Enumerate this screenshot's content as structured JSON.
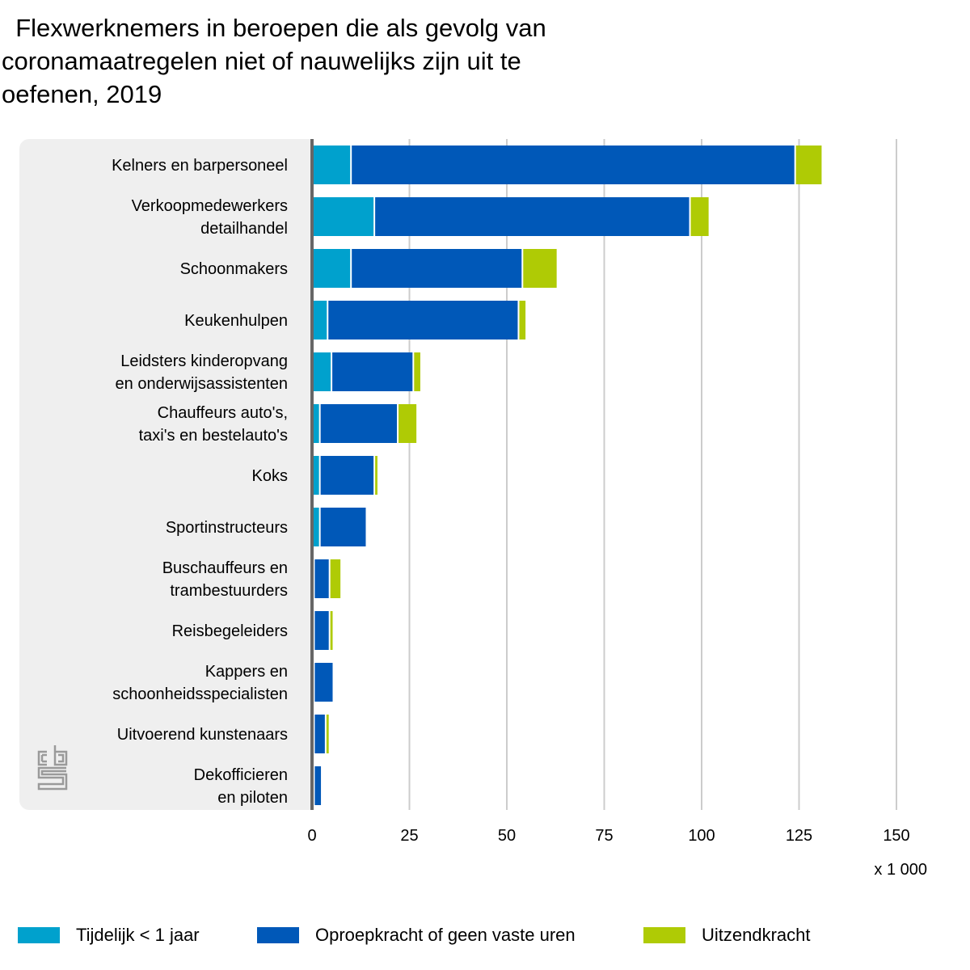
{
  "title": "  Flexwerknemers in beroepen die als gevolg van\ncoronamaatregelen niet of nauwelijks zijn uit te\noefenen, 2019",
  "logo": "cbs-logo-icon",
  "colors": {
    "tijdelijk": "#00a1cd",
    "oproep": "#0058b8",
    "uitzend": "#afcb05",
    "panel": "#efefef",
    "axis": "#666666",
    "grid": "#cccccc"
  },
  "chart_data": {
    "type": "bar",
    "orientation": "horizontal",
    "stacked": true,
    "title": "Flexwerknemers in beroepen die als gevolg van coronamaatregelen niet of nauwelijks zijn uit te oefenen, 2019",
    "xlabel": "x 1 000",
    "ylabel": "",
    "xlim": [
      0,
      150
    ],
    "xticks": [
      0,
      25,
      50,
      75,
      100,
      125,
      150
    ],
    "grid": true,
    "legend_position": "bottom",
    "categories": [
      [
        "Kelners en barpersoneel"
      ],
      [
        "Verkoopmedewerkers",
        "detailhandel"
      ],
      [
        "Schoonmakers"
      ],
      [
        "Keukenhulpen"
      ],
      [
        "Leidsters kinderopvang",
        "en onderwijsassistenten"
      ],
      [
        "Chauffeurs auto's,",
        "taxi's en bestelauto's"
      ],
      [
        "Koks"
      ],
      [
        "Sportinstructeurs"
      ],
      [
        "Buschauffeurs en",
        "trambestuurders"
      ],
      [
        "Reisbegeleiders"
      ],
      [
        "Kappers en",
        "schoonheidsspecialisten"
      ],
      [
        "Uitvoerend kunstenaars"
      ],
      [
        "Dekofficieren",
        "en piloten"
      ]
    ],
    "series": [
      {
        "name": "Tijdelijk < 1 jaar",
        "color": "#00a1cd",
        "values": [
          10,
          16,
          10,
          4,
          5,
          2,
          2,
          2,
          0.5,
          0.5,
          0.5,
          0.5,
          0.5
        ]
      },
      {
        "name": "Oproepkracht of geen vaste uren",
        "color": "#0058b8",
        "values": [
          114,
          81,
          44,
          49,
          21,
          20,
          14,
          12,
          4,
          4,
          5,
          3,
          2
        ]
      },
      {
        "name": "Uitzendkracht",
        "color": "#afcb05",
        "values": [
          7,
          5,
          9,
          2,
          2,
          5,
          1,
          0,
          3,
          1,
          0,
          1,
          0
        ]
      }
    ]
  }
}
